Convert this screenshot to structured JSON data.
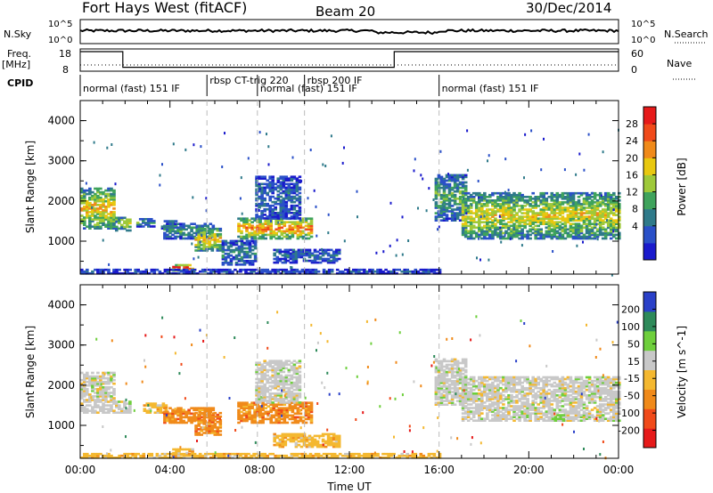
{
  "header": {
    "title": "Fort Hays West (fitACF)",
    "beam": "Beam 20",
    "date": "30/Dec/2014"
  },
  "top_panels": {
    "nsky_label": "N.Sky",
    "nsky_ticks": [
      "10^5",
      "10^0"
    ],
    "nsearch_label": "N.Search",
    "nsearch_ticks": [
      "10^5",
      "10^0"
    ],
    "freq_label": "Freq.",
    "freq_unit": "[MHz]",
    "freq_ticks": [
      "18",
      "8"
    ],
    "nave_label": "Nave",
    "nave_ticks": [
      "60",
      "0"
    ],
    "cpid_label": "CPID",
    "cpid_segments": [
      {
        "start": 0.0,
        "end": 5.65,
        "label": "normal (fast) 151 IF"
      },
      {
        "start": 5.65,
        "end": 7.9,
        "label": "rbsp CT-trig 220"
      },
      {
        "start": 7.9,
        "end": 10.0,
        "label": "normal (fast) 151 IF"
      },
      {
        "start": 10.0,
        "end": 16.0,
        "label": "rbsp 200 IF"
      },
      {
        "start": 16.0,
        "end": 24.0,
        "label": "normal (fast) 151 IF"
      }
    ],
    "freq_steps": [
      {
        "start": 0.0,
        "end": 1.9,
        "value": 18
      },
      {
        "start": 1.9,
        "end": 14.0,
        "value": 10
      },
      {
        "start": 14.0,
        "end": 24.0,
        "value": 18
      }
    ]
  },
  "chart_data": [
    {
      "type": "heatmap",
      "name": "power",
      "ylabel": "Slant Range [km]",
      "ylim": [
        180,
        4500
      ],
      "yticks": [
        "1000",
        "2000",
        "3000",
        "4000"
      ],
      "colorbar_label": "Power [dB]",
      "colorbar_ticks": [
        "28",
        "24",
        "20",
        "16",
        "12",
        "8",
        "4"
      ],
      "colors": [
        "#1a1acc",
        "#2a50c8",
        "#2f7a8a",
        "#3fa35c",
        "#9ec93a",
        "#e8c810",
        "#f08a1a",
        "#f04a1a",
        "#e61a1a"
      ],
      "regions": [
        {
          "t0": 0.0,
          "t1": 1.55,
          "r0": 1300,
          "r1": 2300,
          "level": 0.55
        },
        {
          "t0": 1.55,
          "t1": 2.2,
          "r0": 1250,
          "r1": 1600,
          "level": 0.5
        },
        {
          "t0": 2.5,
          "t1": 3.3,
          "r0": 1350,
          "r1": 1550,
          "level": 0.3
        },
        {
          "t0": 3.6,
          "t1": 4.3,
          "r0": 1300,
          "r1": 1500,
          "level": 0.25
        },
        {
          "t0": 3.7,
          "t1": 5.9,
          "r0": 1050,
          "r1": 1450,
          "level": 0.3
        },
        {
          "t0": 4.1,
          "t1": 5.0,
          "r0": 250,
          "r1": 400,
          "level": 0.85
        },
        {
          "t0": 5.1,
          "t1": 6.2,
          "r0": 750,
          "r1": 1300,
          "level": 0.55
        },
        {
          "t0": 6.3,
          "t1": 7.8,
          "r0": 400,
          "r1": 1000,
          "level": 0.25
        },
        {
          "t0": 7.0,
          "t1": 10.3,
          "r0": 1050,
          "r1": 1550,
          "level": 0.65
        },
        {
          "t0": 7.8,
          "t1": 9.8,
          "r0": 1550,
          "r1": 2600,
          "level": 0.2
        },
        {
          "t0": 8.6,
          "t1": 11.5,
          "r0": 450,
          "r1": 800,
          "level": 0.2
        },
        {
          "t0": 0.0,
          "t1": 16.0,
          "r0": 180,
          "r1": 280,
          "level": 0.15
        },
        {
          "t0": 15.8,
          "t1": 17.2,
          "r0": 1500,
          "r1": 2650,
          "level": 0.35
        },
        {
          "t0": 17.0,
          "t1": 24.0,
          "r0": 1050,
          "r1": 2200,
          "level": 0.5
        }
      ]
    },
    {
      "type": "heatmap",
      "name": "velocity",
      "ylabel": "Slant Range [km]",
      "ylim": [
        180,
        4500
      ],
      "yticks": [
        "1000",
        "2000",
        "3000",
        "4000"
      ],
      "xlabel": "Time UT",
      "xticks": [
        "00:00",
        "04:00",
        "08:00",
        "12:00",
        "16:00",
        "20:00",
        "00:00"
      ],
      "xlim": [
        0,
        24
      ],
      "colorbar_label": "Velocity [m s^-1]",
      "colorbar_ticks": [
        "200",
        "100",
        "50",
        "15",
        "-15",
        "-50",
        "-100",
        "-200"
      ],
      "colors": [
        "#e61a1a",
        "#f04a1a",
        "#f08a1a",
        "#f4b830",
        "#c8c8c8",
        "#6ecf3c",
        "#2e8a5a",
        "#2a40c8"
      ],
      "regions": [
        {
          "t0": 0.0,
          "t1": 1.55,
          "r0": 1300,
          "r1": 2300,
          "class": 4
        },
        {
          "t0": 1.55,
          "t1": 2.2,
          "r0": 1300,
          "r1": 1600,
          "class": 4
        },
        {
          "t0": 2.8,
          "t1": 3.8,
          "r0": 1300,
          "r1": 1550,
          "class": 3
        },
        {
          "t0": 3.7,
          "t1": 5.9,
          "r0": 1050,
          "r1": 1450,
          "class": 2
        },
        {
          "t0": 4.1,
          "t1": 5.0,
          "r0": 250,
          "r1": 400,
          "class": 3
        },
        {
          "t0": 5.1,
          "t1": 6.2,
          "r0": 750,
          "r1": 1300,
          "class": 2
        },
        {
          "t0": 7.0,
          "t1": 10.3,
          "r0": 1050,
          "r1": 1550,
          "class": 2
        },
        {
          "t0": 7.8,
          "t1": 9.8,
          "r0": 1550,
          "r1": 2600,
          "class": 4
        },
        {
          "t0": 8.6,
          "t1": 11.5,
          "r0": 450,
          "r1": 800,
          "class": 3
        },
        {
          "t0": 0.0,
          "t1": 16.0,
          "r0": 180,
          "r1": 280,
          "class": 3
        },
        {
          "t0": 15.8,
          "t1": 17.2,
          "r0": 1500,
          "r1": 2650,
          "class": 4
        },
        {
          "t0": 17.0,
          "t1": 24.0,
          "r0": 1100,
          "r1": 2200,
          "class": 4
        },
        {
          "t0": 21.0,
          "t1": 21.5,
          "r0": 1100,
          "r1": 1250,
          "class": 5
        }
      ]
    }
  ]
}
